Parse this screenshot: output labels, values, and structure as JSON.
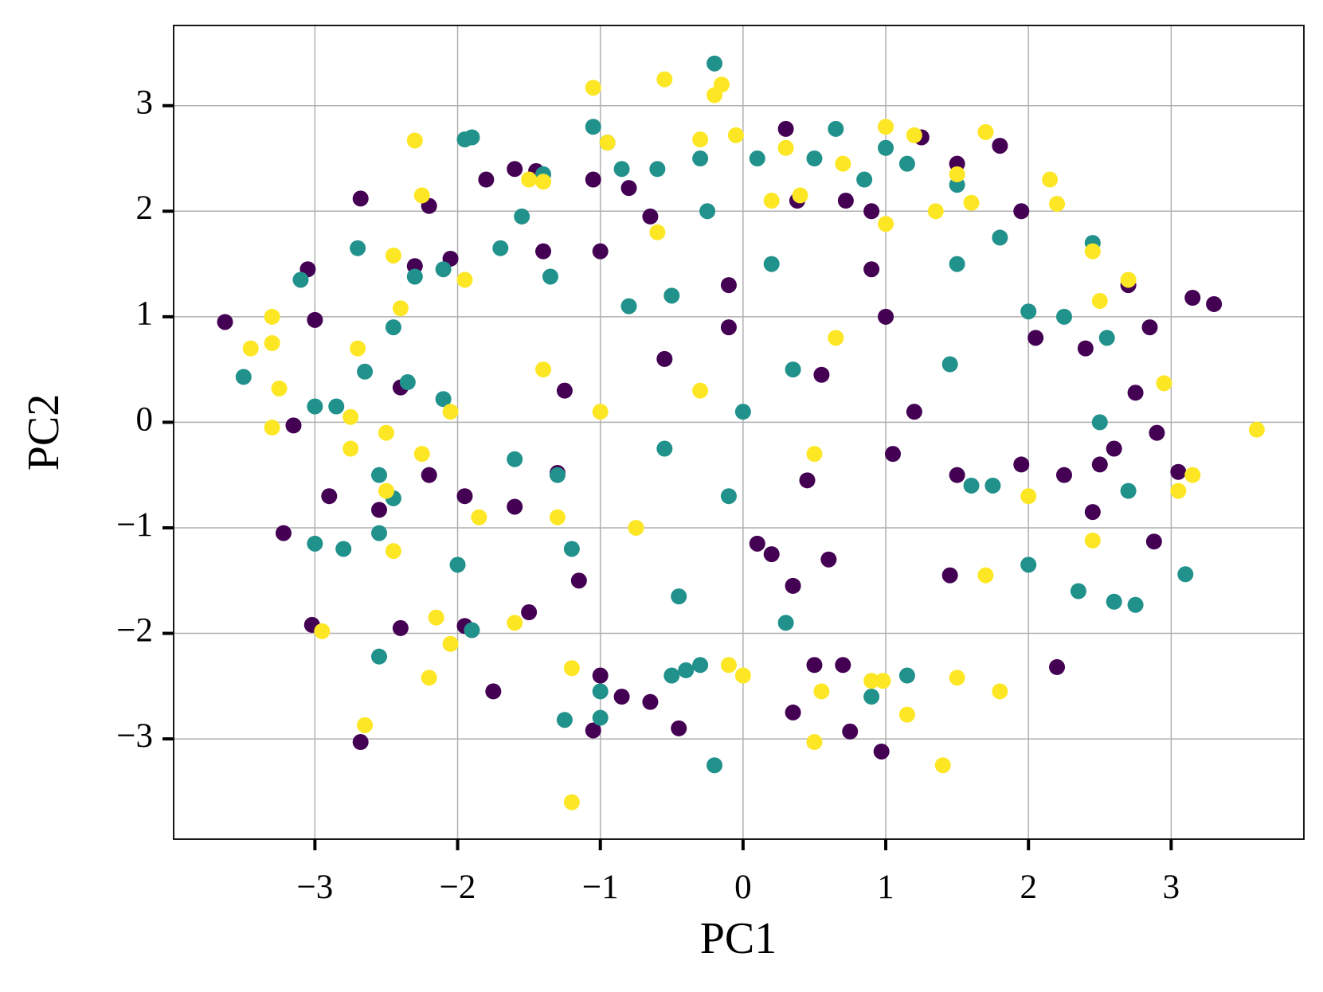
{
  "chart_data": {
    "type": "scatter",
    "xlabel": "PC1",
    "ylabel": "PC2",
    "xlim": [
      -3.99,
      3.93
    ],
    "ylim": [
      -3.95,
      3.76
    ],
    "grid": true,
    "xticks": [
      {
        "value": -3,
        "label": "−3"
      },
      {
        "value": -2,
        "label": "−2"
      },
      {
        "value": -1,
        "label": "−1"
      },
      0,
      1,
      2,
      3
    ],
    "yticks": [
      {
        "value": -3,
        "label": "−3"
      },
      {
        "value": -2,
        "label": "−2"
      },
      {
        "value": -1,
        "label": "−1"
      },
      0,
      1,
      2,
      3
    ],
    "series": [
      {
        "color": "#440154",
        "x": [
          -3.63,
          -3.05,
          -3.0,
          -3.15,
          -2.9,
          -3.22,
          -3.02,
          -2.68,
          -2.68,
          -2.55,
          -2.4,
          -2.3,
          -2.2,
          -2.4,
          -2.05,
          -1.95,
          -1.95,
          -1.8,
          -1.6,
          -1.45,
          -1.75,
          -1.5,
          -1.4,
          -1.3,
          -1.25,
          -1.15,
          -1.05,
          -1.0,
          -1.05,
          -1.0,
          -0.85,
          -0.65,
          -0.8,
          -0.65,
          -0.45,
          -0.1,
          -0.1,
          0.3,
          0.38,
          0.45,
          0.2,
          0.35,
          0.35,
          0.5,
          0.6,
          0.7,
          0.75,
          0.72,
          0.9,
          0.97,
          0.9,
          1.0,
          1.05,
          1.25,
          1.5,
          1.5,
          1.8,
          1.95,
          1.95,
          2.05,
          2.2,
          2.25,
          2.4,
          2.5,
          2.6,
          2.7,
          2.85,
          2.75,
          2.9,
          2.88,
          3.05,
          3.15,
          3.3,
          2.45,
          1.2,
          0.55,
          -0.55,
          -2.2,
          -1.6,
          0.1,
          1.45
        ],
        "values": [
          0.95,
          1.45,
          0.97,
          -0.03,
          -0.7,
          -1.05,
          -1.92,
          2.12,
          -3.03,
          -0.83,
          -1.95,
          1.48,
          2.05,
          0.33,
          1.55,
          -0.7,
          -1.93,
          2.3,
          2.4,
          2.38,
          -2.55,
          -1.8,
          1.62,
          -0.48,
          0.3,
          -1.5,
          2.3,
          1.62,
          -2.92,
          -2.4,
          -2.6,
          -2.65,
          2.22,
          1.95,
          -2.9,
          0.9,
          1.3,
          2.78,
          2.1,
          -0.55,
          -1.25,
          -1.55,
          -2.75,
          -2.3,
          -1.3,
          -2.3,
          -2.93,
          2.1,
          2.0,
          -3.12,
          1.45,
          1.0,
          -0.3,
          2.7,
          2.45,
          -0.5,
          2.62,
          2.0,
          -0.4,
          0.8,
          -2.32,
          -0.5,
          0.7,
          -0.4,
          -0.25,
          1.3,
          0.9,
          0.28,
          -0.1,
          -1.13,
          -0.47,
          1.18,
          1.12,
          -0.85,
          0.1,
          0.45,
          0.6,
          -0.5,
          -0.8,
          -1.15,
          -1.45
        ]
      },
      {
        "color": "#21918c",
        "x": [
          -3.5,
          -3.1,
          -3.0,
          -3.0,
          -2.8,
          -2.7,
          -2.65,
          -2.85,
          -2.55,
          -2.55,
          -2.55,
          -2.45,
          -2.3,
          -2.35,
          -2.1,
          -2.1,
          -2.0,
          -1.95,
          -1.9,
          -1.9,
          -1.7,
          -1.55,
          -1.4,
          -1.35,
          -1.6,
          -1.3,
          -1.2,
          -1.05,
          -0.95,
          -0.85,
          -0.6,
          -0.8,
          -0.5,
          -0.3,
          -0.2,
          -0.25,
          -0.55,
          -0.45,
          -0.4,
          -0.3,
          -0.2,
          -0.1,
          0.1,
          0.2,
          0.35,
          0.5,
          0.65,
          0.85,
          1.0,
          1.15,
          1.5,
          1.5,
          1.8,
          2.0,
          2.25,
          2.45,
          2.55,
          2.5,
          2.7,
          2.6,
          2.75,
          3.1,
          2.35,
          2.0,
          1.6,
          1.15,
          0.9,
          0.3,
          -0.5,
          -1.25,
          -1.0,
          -1.0,
          1.45,
          1.75,
          0.0,
          -2.45
        ],
        "values": [
          0.43,
          1.35,
          0.15,
          -1.15,
          -1.2,
          1.65,
          0.48,
          0.15,
          -0.5,
          -1.05,
          -2.22,
          -0.72,
          1.38,
          0.38,
          1.45,
          0.22,
          -1.35,
          2.68,
          2.7,
          -1.97,
          1.65,
          1.95,
          2.35,
          1.38,
          -0.35,
          -0.5,
          -1.2,
          2.8,
          2.65,
          2.4,
          2.4,
          1.1,
          1.2,
          2.5,
          3.4,
          2.0,
          -0.25,
          -1.65,
          -2.35,
          -2.3,
          -3.25,
          -0.7,
          2.5,
          1.5,
          0.5,
          2.5,
          2.78,
          2.3,
          2.6,
          2.45,
          1.5,
          2.25,
          1.75,
          1.05,
          1.0,
          1.7,
          0.8,
          0.0,
          -0.65,
          -1.7,
          -1.73,
          -1.44,
          -1.6,
          -1.35,
          -0.6,
          -2.4,
          -2.6,
          -1.9,
          -2.4,
          -2.82,
          -2.8,
          -2.55,
          0.55,
          -0.6,
          0.1,
          0.9
        ]
      },
      {
        "color": "#fde725",
        "x": [
          -3.45,
          -3.3,
          -3.3,
          -3.25,
          -3.3,
          -2.95,
          -2.75,
          -2.75,
          -2.7,
          -2.65,
          -2.5,
          -2.5,
          -2.45,
          -2.45,
          -2.4,
          -2.3,
          -2.25,
          -2.25,
          -2.2,
          -2.15,
          -2.05,
          -2.05,
          -1.95,
          -1.85,
          -1.6,
          -1.5,
          -1.4,
          -1.4,
          -1.3,
          -1.2,
          -1.2,
          -1.05,
          -1.0,
          -0.95,
          -0.75,
          -0.55,
          -0.6,
          -0.3,
          -0.2,
          -0.15,
          -0.1,
          0.0,
          -0.05,
          0.2,
          0.3,
          0.4,
          0.5,
          0.55,
          0.7,
          0.9,
          0.98,
          1.0,
          1.0,
          1.15,
          1.2,
          1.35,
          1.4,
          1.5,
          1.5,
          1.6,
          1.7,
          1.8,
          2.15,
          2.2,
          2.45,
          2.5,
          2.7,
          2.95,
          3.05,
          3.15,
          3.6,
          2.45,
          2.0,
          1.7,
          0.65,
          -0.3,
          0.5
        ],
        "values": [
          0.7,
          1.0,
          0.75,
          0.32,
          -0.05,
          -1.98,
          -0.25,
          0.05,
          0.7,
          -2.87,
          -0.1,
          -0.65,
          -1.22,
          1.58,
          1.08,
          2.67,
          2.15,
          -0.3,
          -2.42,
          -1.85,
          -2.1,
          0.1,
          1.35,
          -0.9,
          -1.9,
          2.3,
          2.28,
          0.5,
          -0.9,
          -3.6,
          -2.33,
          3.17,
          0.1,
          2.65,
          -1.0,
          3.25,
          1.8,
          2.68,
          3.1,
          3.2,
          -2.3,
          -2.4,
          2.72,
          2.1,
          2.6,
          2.15,
          -3.03,
          -2.55,
          2.45,
          -2.45,
          -2.45,
          2.8,
          1.88,
          -2.77,
          2.72,
          2.0,
          -3.25,
          -2.42,
          2.35,
          2.08,
          2.75,
          -2.55,
          2.3,
          2.07,
          1.62,
          1.15,
          1.35,
          0.37,
          -0.65,
          -0.5,
          -0.07,
          -1.12,
          -0.7,
          -1.45,
          0.8,
          0.3,
          -0.3
        ]
      }
    ]
  }
}
